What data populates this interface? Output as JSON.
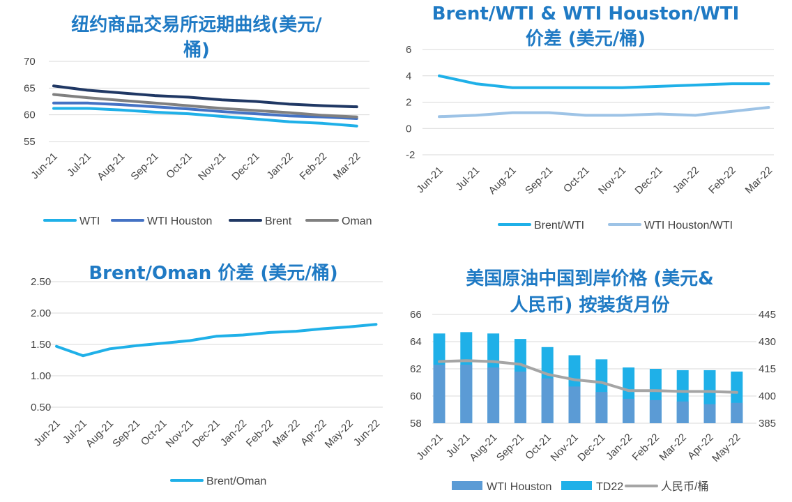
{
  "chart_data": [
    {
      "type": "line",
      "title": "纽约商品交易所远期曲线(美元/桶)",
      "title_lines": [
        "纽约商品交易所远期曲线(美元/",
        "桶)"
      ],
      "categories": [
        "Jun-21",
        "Jul-21",
        "Aug-21",
        "Sep-21",
        "Oct-21",
        "Nov-21",
        "Dec-21",
        "Jan-22",
        "Feb-22",
        "Mar-22"
      ],
      "ylim": [
        55,
        70
      ],
      "yticks": [
        55,
        60,
        65,
        70
      ],
      "grid": true,
      "legend": "bottom",
      "series": [
        {
          "name": "WTI",
          "color": "#1fb0e8",
          "values": [
            61.2,
            61.2,
            60.9,
            60.5,
            60.2,
            59.7,
            59.2,
            58.7,
            58.4,
            57.9
          ]
        },
        {
          "name": "WTI Houston",
          "color": "#4472c4",
          "values": [
            62.2,
            62.2,
            61.9,
            61.5,
            61.1,
            60.6,
            60.2,
            59.8,
            59.6,
            59.3
          ]
        },
        {
          "name": "Brent",
          "color": "#203864",
          "values": [
            65.4,
            64.6,
            64.1,
            63.6,
            63.3,
            62.8,
            62.5,
            62.0,
            61.7,
            61.5
          ]
        },
        {
          "name": "Oman",
          "color": "#808080",
          "values": [
            63.8,
            63.2,
            62.7,
            62.2,
            61.7,
            61.2,
            60.8,
            60.4,
            59.9,
            59.6
          ]
        }
      ]
    },
    {
      "type": "line",
      "title": "Brent/WTI & WTI Houston/WTI 价差 (美元/桶)",
      "title_lines": [
        "Brent/WTI & WTI Houston/WTI",
        "价差 (美元/桶)"
      ],
      "categories": [
        "Jun-21",
        "Jul-21",
        "Aug-21",
        "Sep-21",
        "Oct-21",
        "Nov-21",
        "Dec-21",
        "Jan-22",
        "Feb-22",
        "Mar-22"
      ],
      "ylim": [
        -2,
        6
      ],
      "yticks": [
        -2,
        0,
        2,
        4,
        6
      ],
      "grid": true,
      "legend": "bottom",
      "series": [
        {
          "name": "Brent/WTI",
          "color": "#1fb0e8",
          "values": [
            4.0,
            3.4,
            3.1,
            3.1,
            3.1,
            3.1,
            3.2,
            3.3,
            3.4,
            3.4
          ]
        },
        {
          "name": "WTI Houston/WTI",
          "color": "#9dc3e6",
          "values": [
            0.9,
            1.0,
            1.2,
            1.2,
            1.0,
            1.0,
            1.1,
            1.0,
            1.3,
            1.6
          ]
        }
      ]
    },
    {
      "type": "line",
      "title": "Brent/Oman 价差 (美元/桶)",
      "title_lines": [
        "Brent/Oman 价差 (美元/桶)"
      ],
      "categories": [
        "Jun-21",
        "Jul-21",
        "Aug-21",
        "Sep-21",
        "Oct-21",
        "Nov-21",
        "Dec-21",
        "Jan-22",
        "Feb-22",
        "Mar-22",
        "Apr-22",
        "May-22",
        "Jun-22"
      ],
      "ylim": [
        0.5,
        2.5
      ],
      "yticks": [
        "0.50",
        "1.00",
        "1.50",
        "2.00",
        "2.50"
      ],
      "grid": true,
      "legend": "bottom",
      "series": [
        {
          "name": "Brent/Oman",
          "color": "#1fb0e8",
          "values": [
            1.47,
            1.32,
            1.43,
            1.48,
            1.52,
            1.56,
            1.63,
            1.65,
            1.69,
            1.71,
            1.75,
            1.78,
            1.82
          ]
        }
      ]
    },
    {
      "type": "bar",
      "title": "美国原油中国到岸价格 (美元& 人民币) 按装货月份",
      "title_lines": [
        "美国原油中国到岸价格 (美元&",
        "人民币) 按装货月份"
      ],
      "categories": [
        "Jun-21",
        "Jul-21",
        "Aug-21",
        "Sep-21",
        "Oct-21",
        "Nov-21",
        "Dec-21",
        "Jan-22",
        "Feb-22",
        "Mar-22",
        "Apr-22",
        "May-22"
      ],
      "ylim": [
        58,
        66
      ],
      "yticks": [
        58,
        60,
        62,
        64,
        66
      ],
      "y2lim": [
        385,
        445
      ],
      "y2ticks": [
        385,
        400,
        415,
        430,
        445
      ],
      "grid": true,
      "legend": "bottom",
      "series": [
        {
          "name": "WTI Houston",
          "color": "#5b9bd5",
          "kind": "bar",
          "axis": "left",
          "values": [
            62.3,
            62.3,
            62.1,
            61.8,
            61.3,
            60.7,
            60.3,
            59.8,
            59.7,
            59.6,
            59.4,
            59.5
          ]
        },
        {
          "name": "TD22",
          "color": "#1fb0e8",
          "kind": "bar",
          "axis": "left",
          "values": [
            64.6,
            64.7,
            64.6,
            64.2,
            63.6,
            63.0,
            62.7,
            62.1,
            62.0,
            61.9,
            61.9,
            61.8
          ]
        },
        {
          "name": "人民币/桶",
          "color": "#a5a5a5",
          "kind": "line",
          "axis": "right",
          "values": [
            419,
            419.5,
            419,
            417.5,
            412,
            409,
            407.5,
            403,
            403,
            402.5,
            402.5,
            402
          ]
        }
      ]
    }
  ]
}
